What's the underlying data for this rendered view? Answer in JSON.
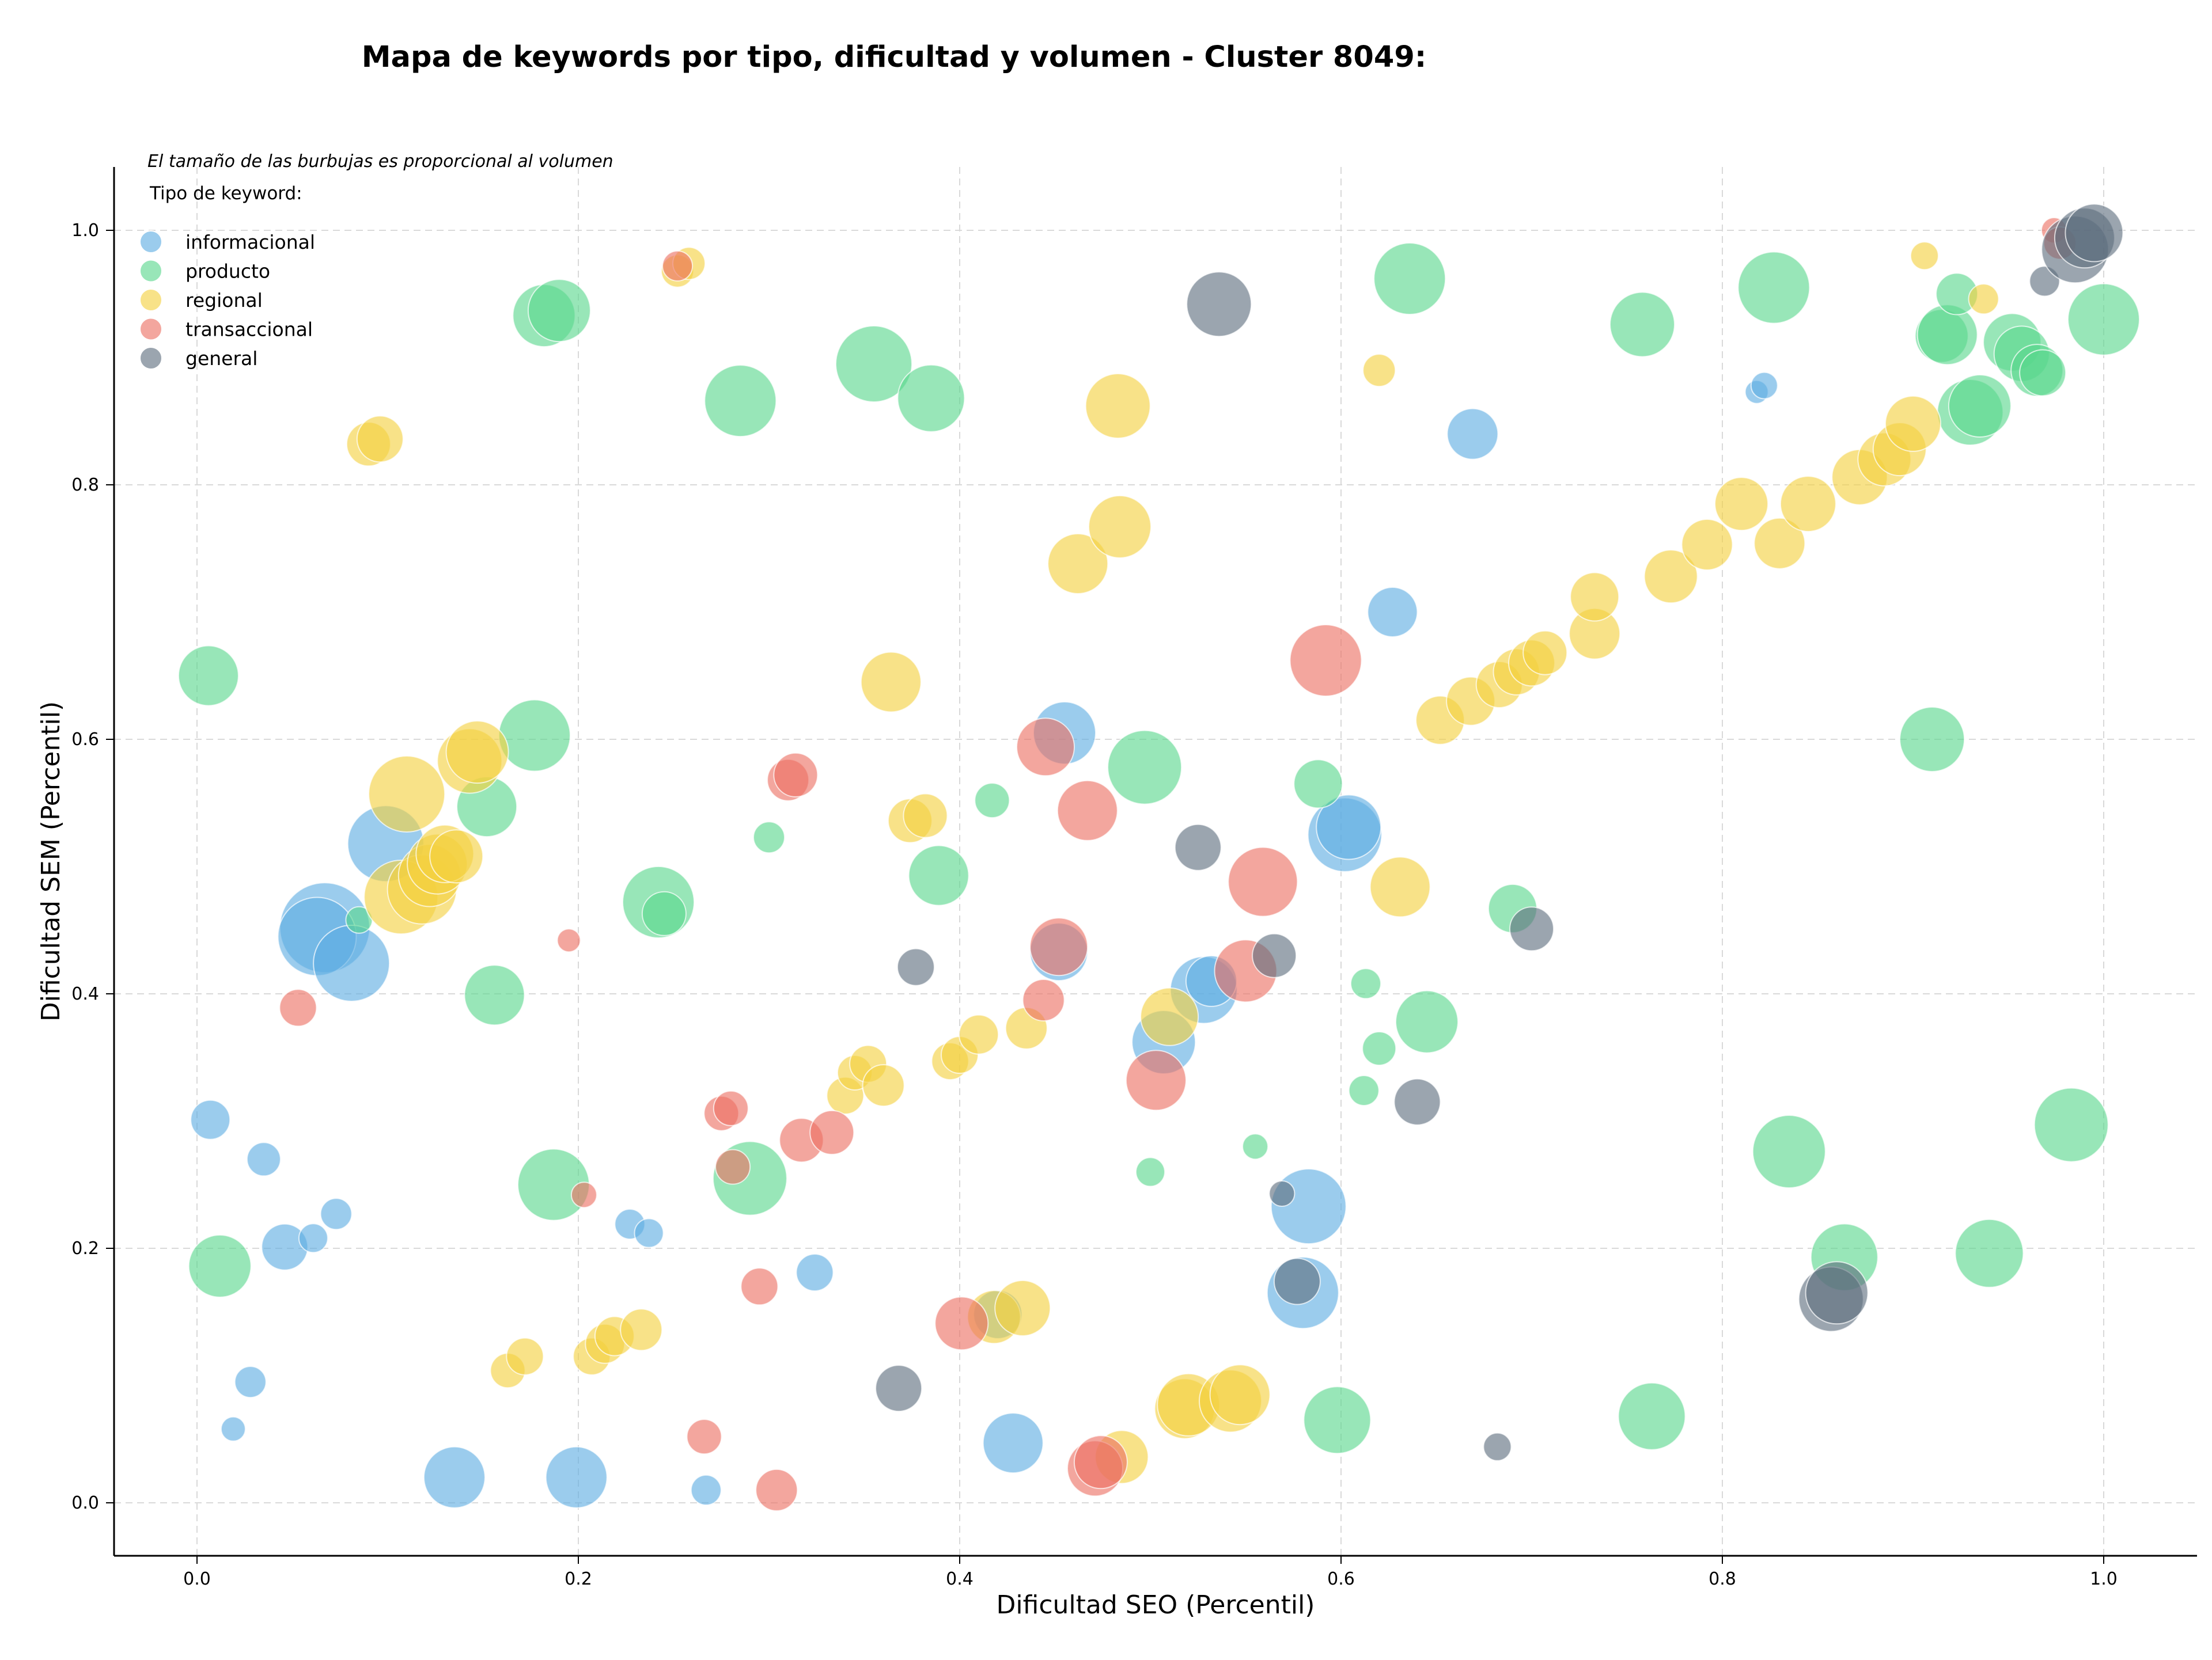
{
  "chart_data": {
    "type": "scatter",
    "title": "Mapa de keywords por tipo, dificultad y volumen - Cluster 8049:",
    "xlabel": "Dificultad SEO (Percentil)",
    "ylabel": "Dificultad SEM (Percentil)",
    "xlim": [
      -0.04,
      1.05
    ],
    "ylim": [
      -0.04,
      1.05
    ],
    "xticks": [
      "0.0",
      "0.2",
      "0.4",
      "0.6",
      "0.8",
      "1.0"
    ],
    "yticks": [
      "0.0",
      "0.2",
      "0.4",
      "0.6",
      "0.8",
      "1.0"
    ],
    "grid": true,
    "note": "El tamaño de las burbujas es proporcional al volumen",
    "legend": {
      "title": "Tipo de keyword:",
      "placement": "top-left",
      "entries": [
        "informacional",
        "producto",
        "regional",
        "transaccional",
        "general"
      ]
    },
    "size_encoding": "volume",
    "series": [
      {
        "name": "informacional",
        "color": "#5DADE2",
        "points": [
          [
            0.007,
            0.301,
            34
          ],
          [
            0.035,
            0.27,
            29
          ],
          [
            0.046,
            0.201,
            40
          ],
          [
            0.061,
            0.208,
            25
          ],
          [
            0.073,
            0.227,
            27
          ],
          [
            0.028,
            0.095,
            27
          ],
          [
            0.019,
            0.058,
            21
          ],
          [
            0.067,
            0.452,
            78
          ],
          [
            0.063,
            0.445,
            68
          ],
          [
            0.081,
            0.424,
            66
          ],
          [
            0.099,
            0.518,
            66
          ],
          [
            0.135,
            0.02,
            53
          ],
          [
            0.199,
            0.02,
            53
          ],
          [
            0.227,
            0.219,
            26
          ],
          [
            0.237,
            0.212,
            25
          ],
          [
            0.267,
            0.01,
            26
          ],
          [
            0.324,
            0.181,
            32
          ],
          [
            0.428,
            0.047,
            52
          ],
          [
            0.42,
            0.148,
            42
          ],
          [
            0.452,
            0.433,
            50
          ],
          [
            0.455,
            0.605,
            54
          ],
          [
            0.507,
            0.362,
            55
          ],
          [
            0.528,
            0.403,
            58
          ],
          [
            0.532,
            0.41,
            44
          ],
          [
            0.583,
            0.233,
            65
          ],
          [
            0.58,
            0.165,
            62
          ],
          [
            0.602,
            0.525,
            64
          ],
          [
            0.604,
            0.531,
            56
          ],
          [
            0.627,
            0.7,
            43
          ],
          [
            0.669,
            0.84,
            44
          ],
          [
            0.818,
            0.873,
            20
          ],
          [
            0.822,
            0.878,
            23
          ]
        ]
      },
      {
        "name": "producto",
        "color": "#58D68D",
        "points": [
          [
            0.006,
            0.65,
            52
          ],
          [
            0.012,
            0.186,
            54
          ],
          [
            0.085,
            0.458,
            23
          ],
          [
            0.156,
            0.399,
            52
          ],
          [
            0.152,
            0.547,
            52
          ],
          [
            0.177,
            0.603,
            62
          ],
          [
            0.182,
            0.933,
            54
          ],
          [
            0.19,
            0.937,
            54
          ],
          [
            0.187,
            0.25,
            62
          ],
          [
            0.242,
            0.472,
            62
          ],
          [
            0.245,
            0.463,
            38
          ],
          [
            0.29,
            0.255,
            64
          ],
          [
            0.285,
            0.866,
            62
          ],
          [
            0.3,
            0.523,
            27
          ],
          [
            0.355,
            0.895,
            66
          ],
          [
            0.385,
            0.868,
            58
          ],
          [
            0.389,
            0.493,
            52
          ],
          [
            0.417,
            0.552,
            30
          ],
          [
            0.497,
            0.578,
            64
          ],
          [
            0.5,
            0.26,
            25
          ],
          [
            0.555,
            0.28,
            22
          ],
          [
            0.588,
            0.565,
            42
          ],
          [
            0.598,
            0.065,
            58
          ],
          [
            0.613,
            0.408,
            26
          ],
          [
            0.612,
            0.324,
            26
          ],
          [
            0.62,
            0.357,
            29
          ],
          [
            0.636,
            0.962,
            62
          ],
          [
            0.645,
            0.378,
            54
          ],
          [
            0.69,
            0.467,
            42
          ],
          [
            0.758,
            0.926,
            56
          ],
          [
            0.763,
            0.068,
            58
          ],
          [
            0.827,
            0.955,
            62
          ],
          [
            0.835,
            0.276,
            63
          ],
          [
            0.864,
            0.193,
            58
          ],
          [
            0.91,
            0.6,
            56
          ],
          [
            0.93,
            0.857,
            57
          ],
          [
            0.935,
            0.862,
            54
          ],
          [
            0.915,
            0.917,
            46
          ],
          [
            0.918,
            0.918,
            52
          ],
          [
            0.923,
            0.95,
            36
          ],
          [
            0.94,
            0.196,
            59
          ],
          [
            0.952,
            0.912,
            50
          ],
          [
            0.957,
            0.903,
            48
          ],
          [
            0.965,
            0.89,
            45
          ],
          [
            0.968,
            0.888,
            40
          ],
          [
            1.0,
            0.93,
            62
          ],
          [
            0.983,
            0.297,
            64
          ]
        ]
      },
      {
        "name": "regional",
        "color": "#F4D03F",
        "points": [
          [
            0.09,
            0.832,
            38
          ],
          [
            0.096,
            0.836,
            40
          ],
          [
            0.107,
            0.476,
            64
          ],
          [
            0.11,
            0.557,
            66
          ],
          [
            0.118,
            0.482,
            60
          ],
          [
            0.122,
            0.493,
            54
          ],
          [
            0.126,
            0.502,
            52
          ],
          [
            0.13,
            0.51,
            50
          ],
          [
            0.136,
            0.508,
            46
          ],
          [
            0.143,
            0.583,
            56
          ],
          [
            0.147,
            0.59,
            54
          ],
          [
            0.163,
            0.104,
            30
          ],
          [
            0.172,
            0.115,
            32
          ],
          [
            0.207,
            0.115,
            32
          ],
          [
            0.214,
            0.125,
            34
          ],
          [
            0.219,
            0.131,
            34
          ],
          [
            0.233,
            0.136,
            36
          ],
          [
            0.252,
            0.968,
            28
          ],
          [
            0.258,
            0.974,
            28
          ],
          [
            0.34,
            0.32,
            32
          ],
          [
            0.345,
            0.338,
            30
          ],
          [
            0.352,
            0.345,
            32
          ],
          [
            0.36,
            0.328,
            36
          ],
          [
            0.364,
            0.645,
            52
          ],
          [
            0.374,
            0.536,
            38
          ],
          [
            0.382,
            0.54,
            38
          ],
          [
            0.395,
            0.347,
            32
          ],
          [
            0.4,
            0.352,
            32
          ],
          [
            0.41,
            0.368,
            34
          ],
          [
            0.418,
            0.146,
            46
          ],
          [
            0.433,
            0.153,
            48
          ],
          [
            0.435,
            0.373,
            36
          ],
          [
            0.462,
            0.738,
            52
          ],
          [
            0.483,
            0.862,
            56
          ],
          [
            0.484,
            0.767,
            54
          ],
          [
            0.485,
            0.036,
            46
          ],
          [
            0.51,
            0.382,
            50
          ],
          [
            0.518,
            0.074,
            52
          ],
          [
            0.52,
            0.077,
            54
          ],
          [
            0.542,
            0.08,
            54
          ],
          [
            0.547,
            0.085,
            52
          ],
          [
            0.62,
            0.89,
            28
          ],
          [
            0.631,
            0.484,
            52
          ],
          [
            0.652,
            0.615,
            42
          ],
          [
            0.668,
            0.63,
            42
          ],
          [
            0.683,
            0.643,
            40
          ],
          [
            0.692,
            0.653,
            40
          ],
          [
            0.7,
            0.66,
            40
          ],
          [
            0.707,
            0.668,
            38
          ],
          [
            0.733,
            0.683,
            44
          ],
          [
            0.733,
            0.712,
            42
          ],
          [
            0.773,
            0.728,
            46
          ],
          [
            0.792,
            0.753,
            44
          ],
          [
            0.81,
            0.785,
            46
          ],
          [
            0.83,
            0.754,
            44
          ],
          [
            0.845,
            0.785,
            48
          ],
          [
            0.872,
            0.806,
            48
          ],
          [
            0.885,
            0.82,
            46
          ],
          [
            0.893,
            0.828,
            46
          ],
          [
            0.9,
            0.848,
            48
          ],
          [
            0.906,
            0.98,
            24
          ],
          [
            0.937,
            0.946,
            26
          ]
        ]
      },
      {
        "name": "transaccional",
        "color": "#EC7063",
        "points": [
          [
            0.053,
            0.389,
            32
          ],
          [
            0.195,
            0.442,
            20
          ],
          [
            0.203,
            0.242,
            22
          ],
          [
            0.252,
            0.972,
            26
          ],
          [
            0.266,
            0.052,
            30
          ],
          [
            0.275,
            0.306,
            30
          ],
          [
            0.28,
            0.31,
            30
          ],
          [
            0.281,
            0.264,
            30
          ],
          [
            0.295,
            0.17,
            32
          ],
          [
            0.304,
            0.01,
            36
          ],
          [
            0.31,
            0.568,
            36
          ],
          [
            0.314,
            0.572,
            38
          ],
          [
            0.317,
            0.285,
            38
          ],
          [
            0.333,
            0.291,
            38
          ],
          [
            0.401,
            0.141,
            46
          ],
          [
            0.444,
            0.395,
            36
          ],
          [
            0.445,
            0.594,
            50
          ],
          [
            0.452,
            0.437,
            50
          ],
          [
            0.467,
            0.544,
            52
          ],
          [
            0.471,
            0.027,
            48
          ],
          [
            0.474,
            0.032,
            46
          ],
          [
            0.503,
            0.332,
            52
          ],
          [
            0.55,
            0.418,
            54
          ],
          [
            0.559,
            0.488,
            60
          ],
          [
            0.592,
            0.662,
            62
          ],
          [
            0.974,
            1.0,
            22
          ],
          [
            0.977,
            0.99,
            28
          ]
        ]
      },
      {
        "name": "general",
        "color": "#5D6D7E",
        "points": [
          [
            0.368,
            0.09,
            40
          ],
          [
            0.377,
            0.421,
            32
          ],
          [
            0.525,
            0.515,
            40
          ],
          [
            0.536,
            0.942,
            56
          ],
          [
            0.565,
            0.43,
            38
          ],
          [
            0.569,
            0.243,
            22
          ],
          [
            0.577,
            0.174,
            40
          ],
          [
            0.64,
            0.315,
            40
          ],
          [
            0.682,
            0.044,
            24
          ],
          [
            0.7,
            0.451,
            38
          ],
          [
            0.857,
            0.16,
            56
          ],
          [
            0.86,
            0.165,
            54
          ],
          [
            0.969,
            0.96,
            26
          ],
          [
            0.985,
            0.985,
            58
          ],
          [
            0.99,
            0.994,
            52
          ],
          [
            0.995,
            0.998,
            50
          ]
        ]
      }
    ]
  }
}
